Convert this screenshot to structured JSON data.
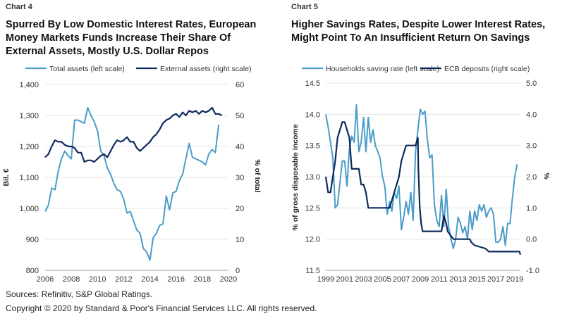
{
  "footer": {
    "sources": "Sources: Refinitiv, S&P Global Ratings.",
    "copyright": "Copyright © 2020 by Standard & Poor's Financial Services LLC. All rights reserved."
  },
  "chart_data": [
    {
      "label": "Chart 4",
      "title_lines": [
        "Spurred By Low Domestic Interest Rates, European",
        "Money Markets Funds Increase Their Share Of",
        "External Assets, Mostly U.S. Dollar Repos"
      ],
      "type": "line",
      "ylabel": "Bil. €",
      "y2label": "% of total",
      "ylim": [
        800,
        1400
      ],
      "y2lim": [
        0,
        60
      ],
      "xlim": [
        2006,
        2020
      ],
      "xticks": [
        "2006",
        "2008",
        "2010",
        "2012",
        "2014",
        "2016",
        "2018",
        "2020"
      ],
      "yticks": [
        "800",
        "900",
        "1,000",
        "1,100",
        "1,200",
        "1,300",
        "1,400"
      ],
      "y2ticks": [
        "0",
        "10",
        "20",
        "30",
        "40",
        "50",
        "60"
      ],
      "grid": true,
      "legend": "top",
      "colors": {
        "left": "#4a9cc9",
        "right": "#0d2a5e"
      },
      "series": [
        {
          "name": "Total assets (left scale)",
          "axis": "left",
          "points": [
            [
              2006.0,
              990
            ],
            [
              2006.25,
              1010
            ],
            [
              2006.5,
              1065
            ],
            [
              2006.75,
              1060
            ],
            [
              2007.0,
              1120
            ],
            [
              2007.25,
              1160
            ],
            [
              2007.5,
              1185
            ],
            [
              2007.75,
              1170
            ],
            [
              2008.0,
              1160
            ],
            [
              2008.25,
              1285
            ],
            [
              2008.5,
              1285
            ],
            [
              2008.75,
              1280
            ],
            [
              2009.0,
              1275
            ],
            [
              2009.25,
              1325
            ],
            [
              2009.5,
              1300
            ],
            [
              2009.75,
              1280
            ],
            [
              2010.0,
              1250
            ],
            [
              2010.25,
              1185
            ],
            [
              2010.5,
              1170
            ],
            [
              2010.75,
              1130
            ],
            [
              2011.0,
              1110
            ],
            [
              2011.25,
              1080
            ],
            [
              2011.5,
              1060
            ],
            [
              2011.75,
              1055
            ],
            [
              2012.0,
              1030
            ],
            [
              2012.25,
              985
            ],
            [
              2012.5,
              990
            ],
            [
              2012.75,
              960
            ],
            [
              2013.0,
              930
            ],
            [
              2013.25,
              920
            ],
            [
              2013.5,
              870
            ],
            [
              2013.75,
              860
            ],
            [
              2014.0,
              833
            ],
            [
              2014.25,
              905
            ],
            [
              2014.5,
              920
            ],
            [
              2014.75,
              945
            ],
            [
              2015.0,
              950
            ],
            [
              2015.25,
              1040
            ],
            [
              2015.5,
              995
            ],
            [
              2015.75,
              1050
            ],
            [
              2016.0,
              1055
            ],
            [
              2016.25,
              1090
            ],
            [
              2016.5,
              1110
            ],
            [
              2016.75,
              1160
            ],
            [
              2017.0,
              1210
            ],
            [
              2017.25,
              1165
            ],
            [
              2017.5,
              1160
            ],
            [
              2017.75,
              1155
            ],
            [
              2018.0,
              1150
            ],
            [
              2018.25,
              1140
            ],
            [
              2018.5,
              1175
            ],
            [
              2018.75,
              1190
            ],
            [
              2019.0,
              1180
            ],
            [
              2019.25,
              1270
            ]
          ]
        },
        {
          "name": "External assets (right scale)",
          "axis": "right",
          "points": [
            [
              2006.0,
              36.5
            ],
            [
              2006.25,
              37.5
            ],
            [
              2006.5,
              40
            ],
            [
              2006.75,
              42
            ],
            [
              2007.0,
              41.5
            ],
            [
              2007.25,
              41.5
            ],
            [
              2007.5,
              40.5
            ],
            [
              2007.75,
              40
            ],
            [
              2008.0,
              40
            ],
            [
              2008.25,
              39.5
            ],
            [
              2008.5,
              38
            ],
            [
              2008.75,
              38
            ],
            [
              2009.0,
              35
            ],
            [
              2009.25,
              35.5
            ],
            [
              2009.5,
              35.5
            ],
            [
              2009.75,
              35
            ],
            [
              2010.0,
              36
            ],
            [
              2010.25,
              37
            ],
            [
              2010.5,
              37.5
            ],
            [
              2010.75,
              36.5
            ],
            [
              2011.0,
              38.5
            ],
            [
              2011.25,
              40.5
            ],
            [
              2011.5,
              42
            ],
            [
              2011.75,
              41.5
            ],
            [
              2012.0,
              42
            ],
            [
              2012.25,
              43
            ],
            [
              2012.5,
              41.5
            ],
            [
              2012.75,
              41.5
            ],
            [
              2013.0,
              39.5
            ],
            [
              2013.25,
              38.5
            ],
            [
              2013.5,
              39.5
            ],
            [
              2013.75,
              40.5
            ],
            [
              2014.0,
              41.5
            ],
            [
              2014.25,
              43
            ],
            [
              2014.5,
              44
            ],
            [
              2014.75,
              45.5
            ],
            [
              2015.0,
              47.5
            ],
            [
              2015.25,
              48.5
            ],
            [
              2015.5,
              49
            ],
            [
              2015.75,
              50
            ],
            [
              2016.0,
              50.5
            ],
            [
              2016.25,
              49.5
            ],
            [
              2016.5,
              51
            ],
            [
              2016.75,
              50
            ],
            [
              2017.0,
              51.5
            ],
            [
              2017.25,
              51
            ],
            [
              2017.5,
              51.5
            ],
            [
              2017.75,
              50.5
            ],
            [
              2018.0,
              51.5
            ],
            [
              2018.25,
              51
            ],
            [
              2018.5,
              51.5
            ],
            [
              2018.75,
              52.5
            ],
            [
              2019.0,
              50.5
            ],
            [
              2019.25,
              50.5
            ],
            [
              2019.5,
              50
            ]
          ]
        }
      ]
    },
    {
      "label": "Chart 5",
      "title_lines": [
        "Higher Savings Rates, Despite Lower Interest Rates,",
        "Might Point To An Insufficient Return On Savings"
      ],
      "type": "line",
      "ylabel": "% of gross disposable income",
      "y2label": "%",
      "ylim": [
        11.5,
        14.5
      ],
      "y2lim": [
        -1.0,
        5.0
      ],
      "xlim": [
        1999,
        2019.6
      ],
      "xticks": [
        "1999",
        "2001",
        "2003",
        "2005",
        "2007",
        "2009",
        "2011",
        "2013",
        "2015",
        "2017",
        "2019"
      ],
      "yticks": [
        "11.5",
        "12.0",
        "12.5",
        "13.0",
        "13.5",
        "14.0",
        "14.5"
      ],
      "y2ticks": [
        "-1.0",
        "0.0",
        "1.0",
        "2.0",
        "3.0",
        "4.0",
        "5.0"
      ],
      "grid": true,
      "legend": "top",
      "colors": {
        "left": "#4a9cc9",
        "right": "#0d2a5e"
      },
      "series": [
        {
          "name": "Households saving rate (left scale)",
          "axis": "left",
          "points": [
            [
              1999.0,
              14.0
            ],
            [
              1999.25,
              13.8
            ],
            [
              1999.5,
              13.55
            ],
            [
              1999.75,
              13.3
            ],
            [
              2000.0,
              12.5
            ],
            [
              2000.25,
              12.55
            ],
            [
              2000.5,
              12.9
            ],
            [
              2000.75,
              13.25
            ],
            [
              2001.0,
              13.25
            ],
            [
              2001.25,
              12.85
            ],
            [
              2001.5,
              13.45
            ],
            [
              2001.75,
              13.65
            ],
            [
              2002.0,
              13.55
            ],
            [
              2002.25,
              14.15
            ],
            [
              2002.5,
              13.4
            ],
            [
              2002.75,
              13.55
            ],
            [
              2003.0,
              13.95
            ],
            [
              2003.25,
              13.4
            ],
            [
              2003.5,
              13.95
            ],
            [
              2003.75,
              13.55
            ],
            [
              2004.0,
              13.75
            ],
            [
              2004.25,
              13.5
            ],
            [
              2004.5,
              13.4
            ],
            [
              2004.75,
              13.3
            ],
            [
              2005.0,
              13.0
            ],
            [
              2005.25,
              12.85
            ],
            [
              2005.5,
              12.4
            ],
            [
              2005.75,
              12.6
            ],
            [
              2006.0,
              12.45
            ],
            [
              2006.25,
              12.75
            ],
            [
              2006.5,
              12.65
            ],
            [
              2006.75,
              12.85
            ],
            [
              2007.0,
              12.15
            ],
            [
              2007.25,
              12.35
            ],
            [
              2007.5,
              12.6
            ],
            [
              2007.75,
              12.4
            ],
            [
              2008.0,
              12.75
            ],
            [
              2008.25,
              12.3
            ],
            [
              2008.5,
              13.4
            ],
            [
              2008.75,
              13.75
            ],
            [
              2009.0,
              14.08
            ],
            [
              2009.25,
              14.0
            ],
            [
              2009.5,
              14.05
            ],
            [
              2009.75,
              13.6
            ],
            [
              2010.0,
              13.3
            ],
            [
              2010.25,
              13.35
            ],
            [
              2010.5,
              12.55
            ],
            [
              2010.75,
              12.3
            ],
            [
              2011.0,
              12.2
            ],
            [
              2011.25,
              12.7
            ],
            [
              2011.5,
              12.2
            ],
            [
              2011.75,
              12.8
            ],
            [
              2012.0,
              12.2
            ],
            [
              2012.25,
              12.0
            ],
            [
              2012.5,
              11.85
            ],
            [
              2012.75,
              12.0
            ],
            [
              2013.0,
              12.35
            ],
            [
              2013.25,
              12.25
            ],
            [
              2013.5,
              12.1
            ],
            [
              2013.75,
              12.2
            ],
            [
              2014.0,
              12.0
            ],
            [
              2014.25,
              12.45
            ],
            [
              2014.5,
              12.15
            ],
            [
              2014.75,
              12.45
            ],
            [
              2015.0,
              12.3
            ],
            [
              2015.25,
              12.55
            ],
            [
              2015.5,
              12.45
            ],
            [
              2015.75,
              12.55
            ],
            [
              2016.0,
              12.35
            ],
            [
              2016.25,
              12.45
            ],
            [
              2016.5,
              12.5
            ],
            [
              2016.75,
              12.4
            ],
            [
              2017.0,
              11.95
            ],
            [
              2017.25,
              11.95
            ],
            [
              2017.5,
              12.0
            ],
            [
              2017.75,
              12.2
            ],
            [
              2018.0,
              11.9
            ],
            [
              2018.25,
              12.25
            ],
            [
              2018.5,
              12.25
            ],
            [
              2018.75,
              12.65
            ],
            [
              2019.0,
              13.0
            ],
            [
              2019.25,
              13.2
            ]
          ]
        },
        {
          "name": "ECB deposits (right scale)",
          "axis": "right",
          "points": [
            [
              1999.0,
              2.0
            ],
            [
              1999.25,
              1.5
            ],
            [
              1999.5,
              1.5
            ],
            [
              1999.75,
              2.0
            ],
            [
              2000.0,
              2.5
            ],
            [
              2000.25,
              3.25
            ],
            [
              2000.5,
              3.5
            ],
            [
              2000.75,
              3.75
            ],
            [
              2001.0,
              3.75
            ],
            [
              2001.25,
              3.5
            ],
            [
              2001.5,
              3.25
            ],
            [
              2001.75,
              2.25
            ],
            [
              2002.0,
              2.25
            ],
            [
              2002.25,
              2.25
            ],
            [
              2002.5,
              2.25
            ],
            [
              2002.75,
              1.75
            ],
            [
              2003.0,
              1.75
            ],
            [
              2003.25,
              1.5
            ],
            [
              2003.5,
              1.0
            ],
            [
              2004.0,
              1.0
            ],
            [
              2005.0,
              1.0
            ],
            [
              2005.75,
              1.0
            ],
            [
              2006.0,
              1.25
            ],
            [
              2006.25,
              1.5
            ],
            [
              2006.5,
              1.75
            ],
            [
              2006.75,
              2.0
            ],
            [
              2007.0,
              2.5
            ],
            [
              2007.25,
              2.75
            ],
            [
              2007.5,
              3.0
            ],
            [
              2008.5,
              3.0
            ],
            [
              2008.75,
              3.25
            ],
            [
              2008.8,
              2.25
            ],
            [
              2008.95,
              1.0
            ],
            [
              2009.1,
              0.5
            ],
            [
              2009.25,
              0.25
            ],
            [
              2011.25,
              0.25
            ],
            [
              2011.5,
              0.75
            ],
            [
              2011.75,
              0.5
            ],
            [
              2011.9,
              0.25
            ],
            [
              2012.5,
              0.0
            ],
            [
              2014.25,
              0.0
            ],
            [
              2014.4,
              -0.1
            ],
            [
              2014.75,
              -0.2
            ],
            [
              2015.9,
              -0.3
            ],
            [
              2016.25,
              -0.4
            ],
            [
              2019.5,
              -0.4
            ],
            [
              2019.6,
              -0.5
            ]
          ]
        }
      ]
    }
  ]
}
